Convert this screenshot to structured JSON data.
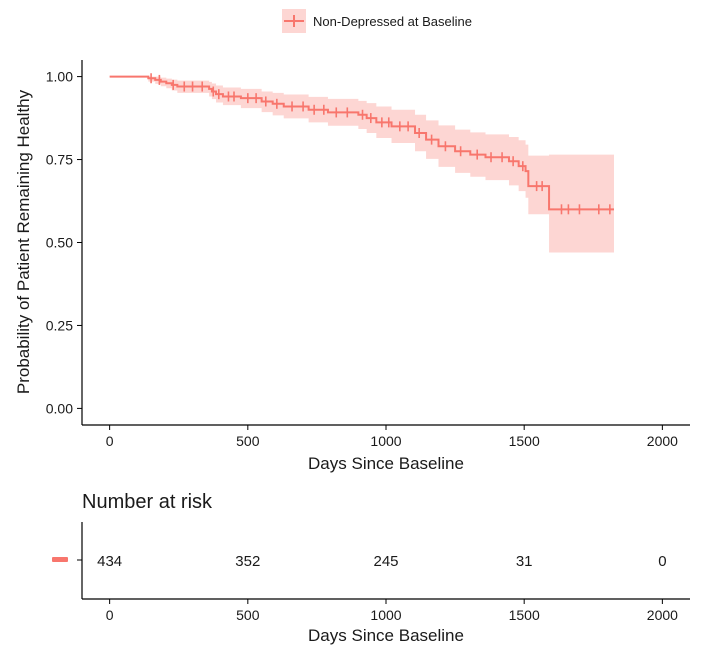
{
  "legend": {
    "label": "Non-Depressed at Baseline"
  },
  "colors": {
    "series": "#F8766D",
    "band": "#F8766D",
    "axis": "#000000"
  },
  "chart_data": [
    {
      "type": "line",
      "subtype": "kaplan-meier step",
      "xlabel": "Days Since Baseline",
      "ylabel": "Probability of Patient Remaining Healthy",
      "xlim": [
        -100,
        2100
      ],
      "ylim": [
        -0.05,
        1.05
      ],
      "x_ticks": [
        0,
        500,
        1000,
        1500,
        2000
      ],
      "x_tick_labels": [
        "0",
        "500",
        "1000",
        "1500",
        "2000"
      ],
      "y_ticks": [
        0.0,
        0.25,
        0.5,
        0.75,
        1.0
      ],
      "y_tick_labels": [
        "0.00",
        "0.25",
        "0.50",
        "0.75",
        "1.00"
      ],
      "grid": false,
      "legend_position": "top",
      "series": [
        {
          "name": "Non-Depressed at Baseline",
          "x": [
            0,
            140,
            165,
            185,
            205,
            225,
            245,
            360,
            370,
            385,
            410,
            475,
            550,
            590,
            630,
            720,
            790,
            900,
            930,
            965,
            1020,
            1105,
            1145,
            1190,
            1250,
            1305,
            1360,
            1445,
            1480,
            1505,
            1515,
            1590,
            1825
          ],
          "y": [
            1.0,
            0.995,
            0.99,
            0.985,
            0.98,
            0.975,
            0.97,
            0.963,
            0.955,
            0.947,
            0.94,
            0.935,
            0.925,
            0.918,
            0.91,
            0.9,
            0.892,
            0.885,
            0.875,
            0.862,
            0.85,
            0.83,
            0.81,
            0.79,
            0.775,
            0.765,
            0.757,
            0.745,
            0.73,
            0.715,
            0.67,
            0.6,
            0.6
          ],
          "ci_lower": [
            1.0,
            0.985,
            0.978,
            0.971,
            0.965,
            0.958,
            0.951,
            0.94,
            0.932,
            0.922,
            0.914,
            0.905,
            0.893,
            0.883,
            0.874,
            0.862,
            0.852,
            0.842,
            0.83,
            0.815,
            0.8,
            0.775,
            0.752,
            0.728,
            0.71,
            0.698,
            0.688,
            0.672,
            0.655,
            0.635,
            0.585,
            0.47,
            0.47
          ],
          "ci_upper": [
            1.0,
            1.0,
            1.0,
            0.997,
            0.994,
            0.991,
            0.988,
            0.984,
            0.979,
            0.973,
            0.967,
            0.963,
            0.955,
            0.951,
            0.946,
            0.939,
            0.933,
            0.927,
            0.92,
            0.91,
            0.9,
            0.885,
            0.868,
            0.853,
            0.84,
            0.832,
            0.826,
            0.818,
            0.808,
            0.795,
            0.762,
            0.765,
            0.765
          ],
          "censor_x": [
            150,
            180,
            230,
            270,
            300,
            335,
            375,
            395,
            430,
            450,
            500,
            530,
            565,
            605,
            660,
            700,
            740,
            775,
            820,
            860,
            915,
            945,
            985,
            1010,
            1050,
            1080,
            1120,
            1165,
            1215,
            1270,
            1330,
            1380,
            1420,
            1460,
            1495,
            1545,
            1565,
            1635,
            1660,
            1700,
            1770,
            1810
          ]
        }
      ]
    },
    {
      "type": "table",
      "title": "Number at risk",
      "xlabel": "Days Since Baseline",
      "x_ticks": [
        0,
        500,
        1000,
        1500,
        2000
      ],
      "x_tick_labels": [
        "0",
        "500",
        "1000",
        "1500",
        "2000"
      ],
      "counts": [
        "434",
        "352",
        "245",
        "31",
        "0"
      ]
    }
  ]
}
